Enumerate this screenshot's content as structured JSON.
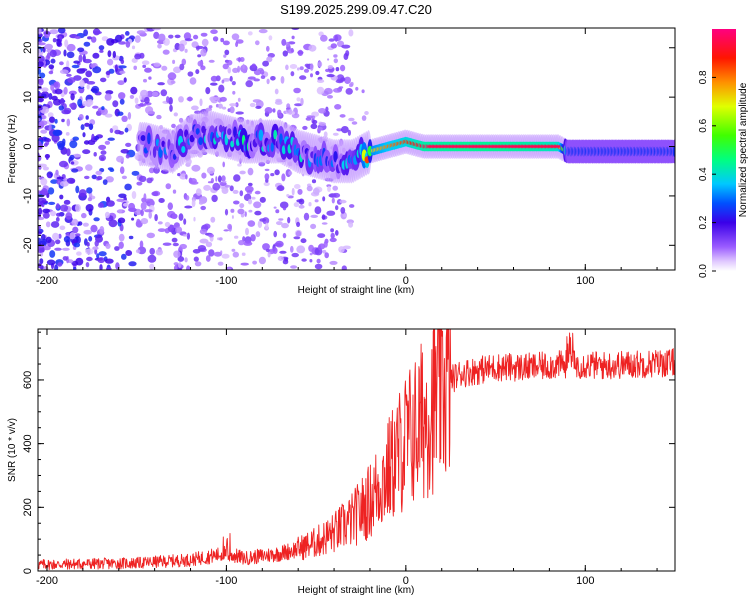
{
  "title": "S199.2025.299.09.47.C20",
  "chart_data": [
    {
      "type": "heatmap",
      "name": "spectrogram",
      "xlabel": "Height of straight line (km)",
      "ylabel": "Frequency (Hz)",
      "xlim": [
        -205,
        150
      ],
      "ylim": [
        -25,
        24
      ],
      "xticks": [
        -200,
        -100,
        0,
        100
      ],
      "yticks": [
        -20,
        -10,
        0,
        10,
        20
      ],
      "colorbar": {
        "label": "Normalized spectral amplitude",
        "range": [
          0,
          1
        ],
        "ticks": [
          0.0,
          0.2,
          0.4,
          0.6,
          0.8
        ]
      },
      "ridge": {
        "description": "dominant frequency track",
        "x": [
          -145,
          -130,
          -120,
          -110,
          -100,
          -90,
          -80,
          -70,
          -60,
          -50,
          -40,
          -30,
          -20,
          -10,
          0,
          10,
          30,
          50,
          70,
          85,
          90,
          150
        ],
        "y": [
          0.5,
          -1,
          2,
          3,
          2,
          1,
          1,
          1,
          -1,
          -2,
          -3,
          -3,
          -1,
          0,
          1,
          0,
          0,
          0,
          0,
          0,
          -1,
          -1
        ],
        "amplitude": [
          0.2,
          0.3,
          0.25,
          0.3,
          0.3,
          0.35,
          0.3,
          0.35,
          0.3,
          0.3,
          0.35,
          0.3,
          0.7,
          0.8,
          0.85,
          0.95,
          0.98,
          0.98,
          0.95,
          0.9,
          0.25,
          0.25
        ]
      }
    },
    {
      "type": "line",
      "name": "snr",
      "xlabel": "Height of straight line (km)",
      "ylabel": "SNR (10 * v/v)",
      "xlim": [
        -205,
        150
      ],
      "ylim": [
        0,
        760
      ],
      "xticks": [
        -200,
        -100,
        0,
        100
      ],
      "yticks": [
        0,
        200,
        400,
        600
      ],
      "color": "#ee2222",
      "trend": {
        "x": [
          -205,
          -150,
          -120,
          -100,
          -90,
          -70,
          -60,
          -50,
          -40,
          -30,
          -20,
          -15,
          -10,
          -5,
          0,
          5,
          10,
          15,
          20,
          25,
          30,
          50,
          70,
          90,
          110,
          130,
          150
        ],
        "y": [
          20,
          25,
          35,
          55,
          40,
          55,
          70,
          90,
          120,
          160,
          220,
          270,
          310,
          360,
          410,
          440,
          480,
          530,
          580,
          600,
          620,
          640,
          640,
          650,
          645,
          650,
          655
        ]
      }
    }
  ]
}
